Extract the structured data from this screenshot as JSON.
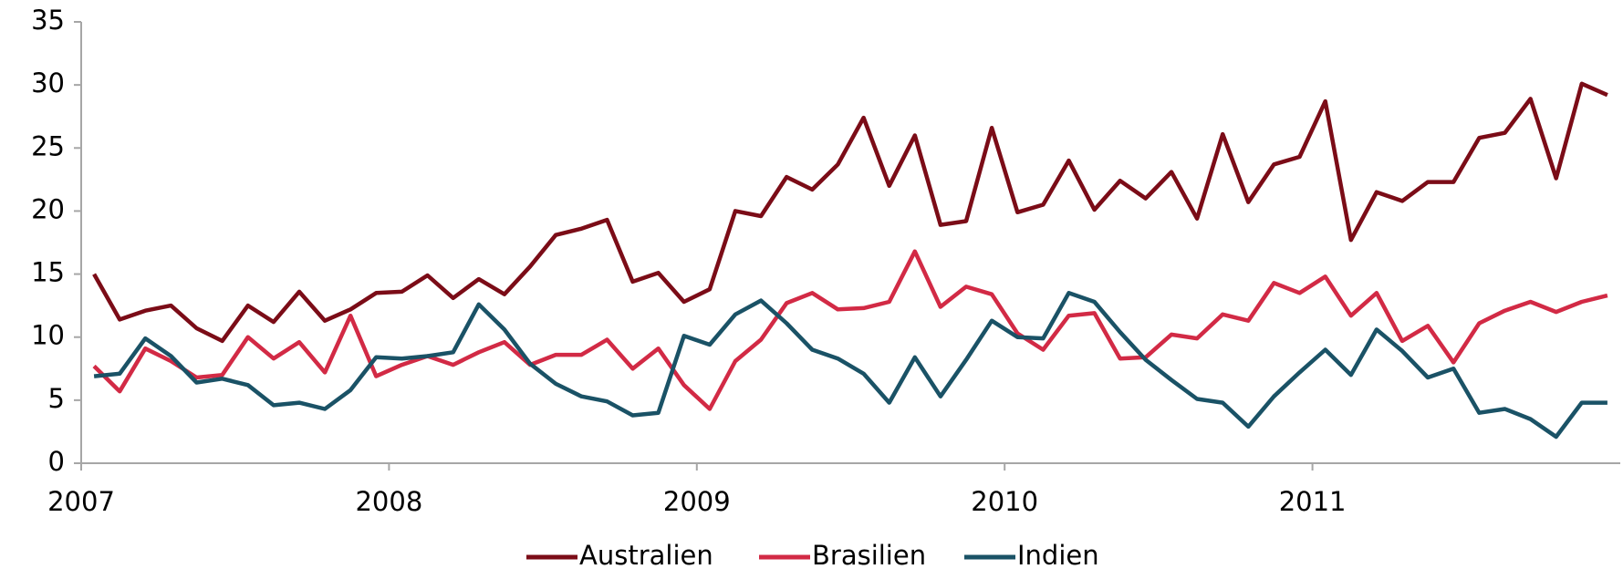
{
  "chart_data": {
    "type": "line",
    "categories": [
      "2007",
      null,
      null,
      null,
      null,
      null,
      null,
      null,
      null,
      null,
      null,
      null,
      "2008",
      null,
      null,
      null,
      null,
      null,
      null,
      null,
      null,
      null,
      null,
      null,
      "2009",
      null,
      null,
      null,
      null,
      null,
      null,
      null,
      null,
      null,
      null,
      null,
      "2010",
      null,
      null,
      null,
      null,
      null,
      null,
      null,
      null,
      null,
      null,
      null,
      "2011",
      null,
      null,
      null,
      null,
      null,
      null,
      null,
      null,
      null,
      null,
      null
    ],
    "series": [
      {
        "name": "Australien",
        "color": "#7b0c17",
        "values": [
          15,
          11.4,
          12.1,
          12.5,
          10.7,
          9.7,
          12.5,
          11.2,
          13.6,
          11.3,
          12.2,
          13.5,
          13.6,
          14.9,
          13.1,
          14.6,
          13.4,
          15.6,
          18.1,
          18.6,
          19.3,
          14.4,
          15.1,
          12.8,
          13.8,
          20.0,
          19.6,
          22.7,
          21.7,
          23.7,
          27.4,
          22.0,
          26.0,
          18.9,
          19.2,
          26.6,
          19.9,
          20.5,
          24.0,
          20.1,
          22.4,
          21.0,
          23.1,
          19.4,
          26.1,
          20.7,
          23.7,
          24.3,
          28.7,
          17.7,
          21.5,
          20.8,
          22.3,
          22.3,
          25.8,
          26.2,
          28.9,
          22.6,
          30.1,
          29.2
        ]
      },
      {
        "name": "Brasilien",
        "color": "#d22a45",
        "values": [
          7.7,
          5.7,
          9.1,
          8.1,
          6.8,
          7.0,
          10.0,
          8.3,
          9.6,
          7.2,
          11.7,
          6.9,
          7.8,
          8.5,
          7.8,
          8.8,
          9.6,
          7.8,
          8.6,
          8.6,
          9.8,
          7.5,
          9.1,
          6.2,
          4.3,
          8.1,
          9.8,
          12.7,
          13.5,
          12.2,
          12.3,
          12.8,
          16.8,
          12.4,
          14.0,
          13.4,
          10.3,
          9.0,
          11.7,
          11.9,
          8.3,
          8.4,
          10.2,
          9.9,
          11.8,
          11.3,
          14.3,
          13.5,
          14.8,
          11.7,
          13.5,
          9.7,
          10.9,
          8.0,
          11.1,
          12.1,
          12.8,
          12.0,
          12.8,
          13.3
        ]
      },
      {
        "name": "Indien",
        "color": "#1a5266",
        "values": [
          6.9,
          7.1,
          9.9,
          8.5,
          6.4,
          6.7,
          6.2,
          4.6,
          4.8,
          4.3,
          5.8,
          8.4,
          8.3,
          8.5,
          8.8,
          12.6,
          10.6,
          7.9,
          6.3,
          5.3,
          4.9,
          3.8,
          4.0,
          10.1,
          9.4,
          11.8,
          12.9,
          11.1,
          9.0,
          8.3,
          7.1,
          4.8,
          8.4,
          5.3,
          8.2,
          11.3,
          10.0,
          9.9,
          13.5,
          12.8,
          10.4,
          8.2,
          6.6,
          5.1,
          4.8,
          2.9,
          5.3,
          7.2,
          9.0,
          7.0,
          10.6,
          8.9,
          6.8,
          7.5,
          4.0,
          4.3,
          3.5,
          2.1,
          4.8,
          4.8
        ]
      }
    ],
    "ylim": [
      0,
      35
    ],
    "yticks": [
      0,
      5,
      10,
      15,
      20,
      25,
      30,
      35
    ],
    "grid": false,
    "legend": "bottom"
  }
}
